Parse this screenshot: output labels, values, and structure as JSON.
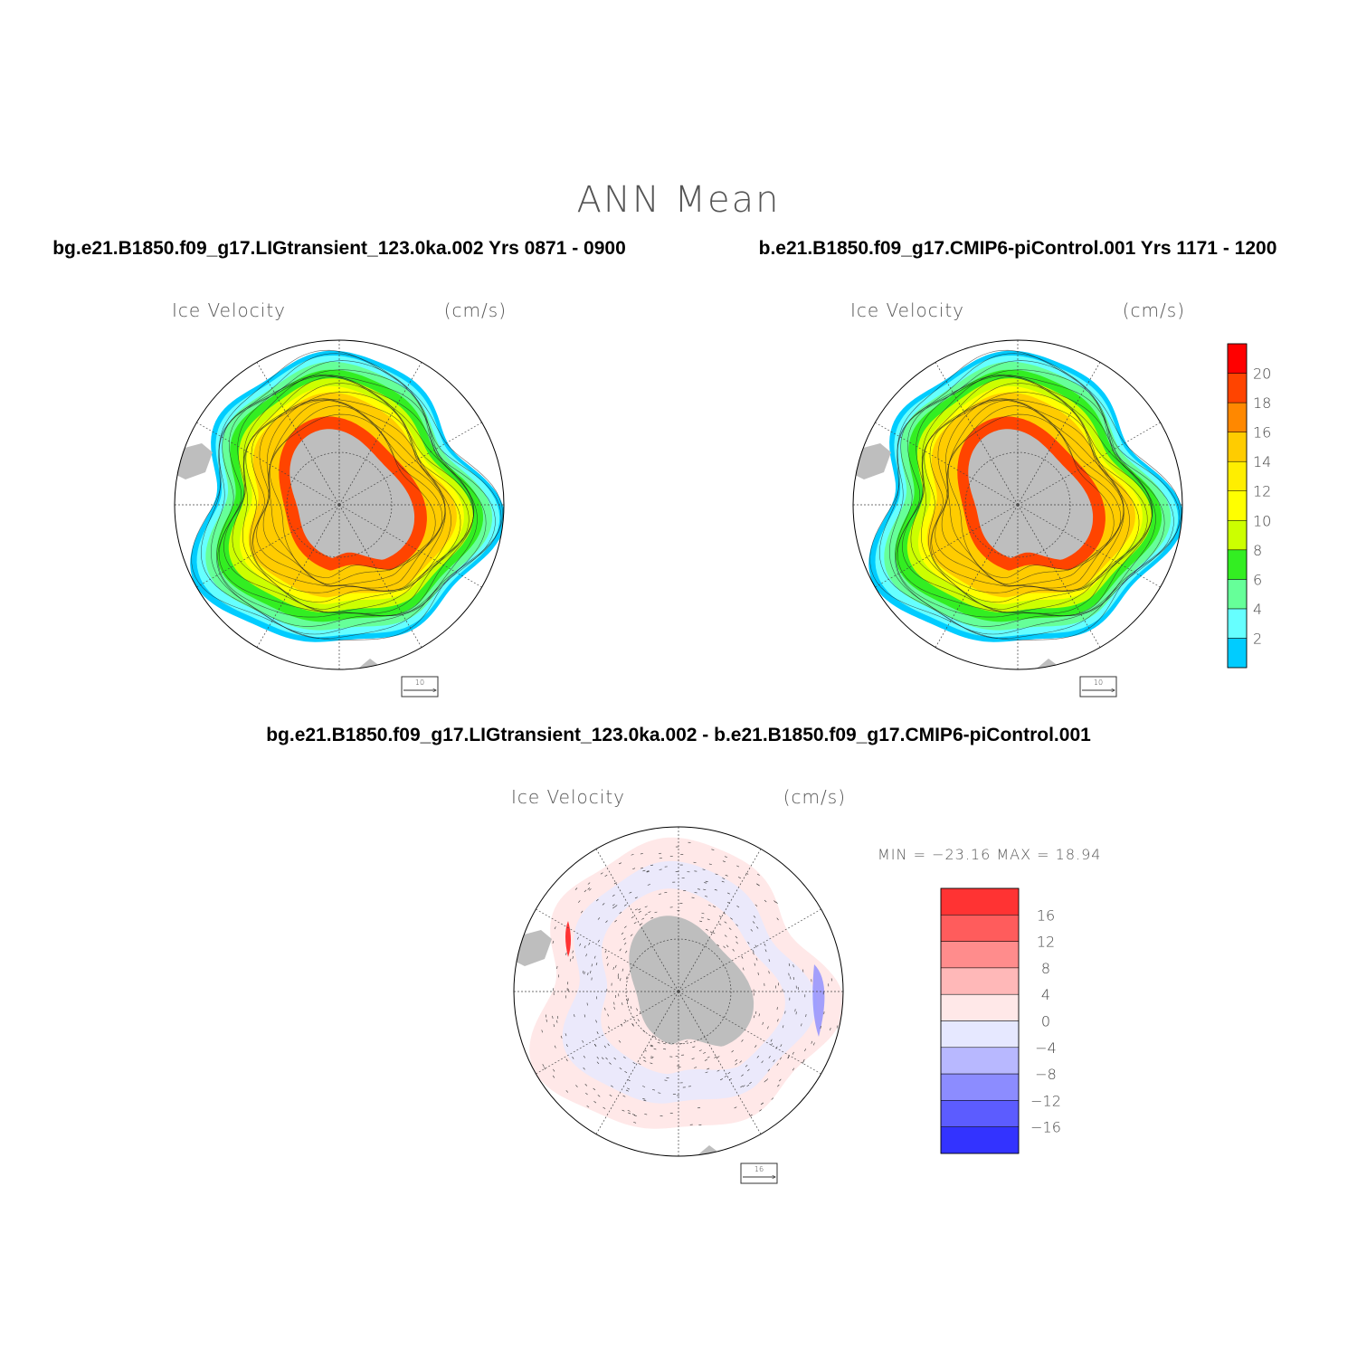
{
  "header": {
    "title": "ANN Mean"
  },
  "panels": [
    {
      "id": "lig",
      "run_title": "bg.e21.B1850.f09_g17.LIGtransient_123.0ka.002  Yrs 0871 - 0900",
      "variable": "Ice Velocity",
      "units": "(cm/s)",
      "ref_vector_label": "10"
    },
    {
      "id": "pi",
      "run_title": "b.e21.B1850.f09_g17.CMIP6-piControl.001  Yrs 1171 - 1200",
      "variable": "Ice Velocity",
      "units": "(cm/s)",
      "ref_vector_label": "10"
    },
    {
      "id": "diff",
      "run_title": "bg.e21.B1850.f09_g17.LIGtransient_123.0ka.002 - b.e21.B1850.f09_g17.CMIP6-piControl.001",
      "variable": "Ice Velocity",
      "units": "(cm/s)",
      "ref_vector_label": "16",
      "minmax": "MIN = −23.16 MAX =  18.94"
    }
  ],
  "colorbar_abs": {
    "colors": [
      "#00ccff",
      "#66ffff",
      "#66ff99",
      "#33ee22",
      "#ccff00",
      "#ffff00",
      "#ffee00",
      "#ffcc00",
      "#ff8800",
      "#ff4400",
      "#ff0000"
    ],
    "labels": [
      "2",
      "4",
      "6",
      "8",
      "10",
      "12",
      "14",
      "16",
      "18",
      "20"
    ]
  },
  "colorbar_diff": {
    "colors": [
      "#ff3333",
      "#ff5c5c",
      "#ff8c8c",
      "#ffb8b8",
      "#ffe8e8",
      "#e6e8ff",
      "#b8b8ff",
      "#8c8cff",
      "#5c5cff",
      "#3333ff"
    ],
    "labels": [
      "16",
      "12",
      "8",
      "4",
      "0",
      "−4",
      "−8",
      "−12",
      "−16"
    ]
  },
  "colors": {
    "land": "#bebebe",
    "grid": "#444444",
    "circle": "#000000"
  }
}
